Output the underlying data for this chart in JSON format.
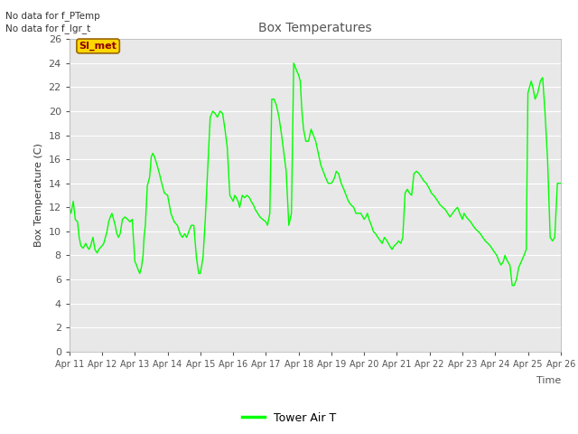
{
  "title": "Box Temperatures",
  "xlabel": "Time",
  "ylabel": "Box Temperature (C)",
  "ylim": [
    0,
    26
  ],
  "yticks": [
    0,
    2,
    4,
    6,
    8,
    10,
    12,
    14,
    16,
    18,
    20,
    22,
    24,
    26
  ],
  "xtick_labels": [
    "Apr 11",
    "Apr 12",
    "Apr 13",
    "Apr 14",
    "Apr 15",
    "Apr 16",
    "Apr 17",
    "Apr 18",
    "Apr 19",
    "Apr 20",
    "Apr 21",
    "Apr 22",
    "Apr 23",
    "Apr 24",
    "Apr 25",
    "Apr 26"
  ],
  "line_color": "#00FF00",
  "line_label": "Tower Air T",
  "annotation1": "No data for f_PTemp",
  "annotation2": "No data for f_lgr_t",
  "si_met_label": "SI_met",
  "background_color": "#FFFFFF",
  "plot_bg_color": "#E8E8E8",
  "grid_color": "#FFFFFF",
  "key_x": [
    0.0,
    0.05,
    0.12,
    0.18,
    0.25,
    0.3,
    0.35,
    0.42,
    0.5,
    0.55,
    0.6,
    0.65,
    0.72,
    0.78,
    0.85,
    0.9,
    1.0,
    1.05,
    1.1,
    1.15,
    1.2,
    1.25,
    1.3,
    1.35,
    1.4,
    1.45,
    1.5,
    1.55,
    1.62,
    1.7,
    1.78,
    1.85,
    1.92,
    2.0,
    2.05,
    2.1,
    2.15,
    2.2,
    2.25,
    2.28,
    2.32,
    2.38,
    2.45,
    2.5,
    2.55,
    2.6,
    2.68,
    2.75,
    2.82,
    2.9,
    3.0,
    3.1,
    3.2,
    3.3,
    3.38,
    3.45,
    3.52,
    3.58,
    3.65,
    3.72,
    3.8,
    3.88,
    3.95,
    4.0,
    4.08,
    4.15,
    4.22,
    4.3,
    4.38,
    4.45,
    4.52,
    4.6,
    4.68,
    4.75,
    4.82,
    4.9,
    5.0,
    5.05,
    5.1,
    5.15,
    5.2,
    5.28,
    5.35,
    5.42,
    5.5,
    5.55,
    5.62,
    5.68,
    5.75,
    5.82,
    5.9,
    6.0,
    6.05,
    6.12,
    6.18,
    6.25,
    6.32,
    6.4,
    6.48,
    6.55,
    6.62,
    6.7,
    6.78,
    6.85,
    6.92,
    7.0,
    7.05,
    7.1,
    7.15,
    7.22,
    7.3,
    7.38,
    7.45,
    7.52,
    7.6,
    7.68,
    7.75,
    7.82,
    7.9,
    8.0,
    8.05,
    8.1,
    8.15,
    8.22,
    8.3,
    8.38,
    8.45,
    8.52,
    8.6,
    8.68,
    8.75,
    8.82,
    8.9,
    9.0,
    9.05,
    9.1,
    9.15,
    9.22,
    9.28,
    9.35,
    9.42,
    9.5,
    9.55,
    9.62,
    9.7,
    9.78,
    9.85,
    9.92,
    10.0,
    10.05,
    10.12,
    10.18,
    10.25,
    10.32,
    10.38,
    10.45,
    10.52,
    10.6,
    10.68,
    10.75,
    10.82,
    10.9,
    11.0,
    11.05,
    11.12,
    11.18,
    11.25,
    11.32,
    11.4,
    11.48,
    11.55,
    11.62,
    11.7,
    11.78,
    11.85,
    11.92,
    12.0,
    12.05,
    12.12,
    12.18,
    12.25,
    12.32,
    12.4,
    12.48,
    12.55,
    12.62,
    12.7,
    12.78,
    12.85,
    12.92,
    13.0,
    13.05,
    13.12,
    13.18,
    13.25,
    13.3,
    13.38,
    13.45,
    13.52,
    13.58,
    13.65,
    13.72,
    13.8,
    13.88,
    13.95,
    14.0,
    14.05,
    14.1,
    14.15,
    14.22,
    14.3,
    14.38,
    14.45,
    14.52,
    14.6,
    14.68,
    14.75,
    14.82,
    14.9,
    15.0
  ],
  "key_y": [
    12.0,
    11.5,
    12.5,
    11.0,
    10.8,
    9.5,
    8.8,
    8.6,
    9.0,
    8.7,
    8.5,
    8.8,
    9.5,
    8.5,
    8.2,
    8.5,
    8.8,
    9.0,
    9.5,
    10.0,
    10.8,
    11.2,
    11.5,
    11.0,
    10.5,
    9.8,
    9.5,
    9.8,
    11.0,
    11.2,
    11.0,
    10.8,
    11.0,
    7.5,
    7.2,
    6.8,
    6.5,
    7.0,
    8.0,
    9.5,
    10.5,
    13.8,
    14.5,
    16.2,
    16.5,
    16.2,
    15.5,
    14.8,
    14.0,
    13.2,
    13.0,
    11.5,
    10.8,
    10.5,
    9.8,
    9.5,
    9.8,
    9.5,
    10.0,
    10.5,
    10.5,
    7.8,
    6.5,
    6.5,
    7.8,
    11.0,
    15.0,
    19.5,
    20.0,
    19.8,
    19.5,
    20.0,
    19.8,
    18.5,
    17.0,
    13.0,
    12.5,
    13.0,
    12.8,
    12.5,
    12.0,
    13.0,
    12.8,
    13.0,
    12.8,
    12.5,
    12.2,
    11.8,
    11.5,
    11.2,
    11.0,
    10.8,
    10.5,
    11.5,
    21.0,
    21.0,
    20.5,
    19.5,
    18.0,
    16.5,
    15.0,
    10.5,
    11.5,
    24.0,
    23.5,
    23.0,
    22.5,
    20.0,
    18.5,
    17.5,
    17.5,
    18.5,
    18.0,
    17.5,
    16.5,
    15.5,
    15.0,
    14.5,
    14.0,
    14.0,
    14.2,
    14.5,
    15.0,
    14.8,
    14.0,
    13.5,
    13.0,
    12.5,
    12.2,
    12.0,
    11.5,
    11.5,
    11.5,
    11.0,
    11.2,
    11.5,
    11.0,
    10.5,
    10.0,
    9.8,
    9.5,
    9.2,
    9.0,
    9.5,
    9.2,
    8.8,
    8.5,
    8.8,
    9.0,
    9.2,
    9.0,
    9.5,
    13.2,
    13.5,
    13.2,
    13.0,
    14.8,
    15.0,
    14.8,
    14.5,
    14.2,
    14.0,
    13.5,
    13.2,
    13.0,
    12.8,
    12.5,
    12.2,
    12.0,
    11.8,
    11.5,
    11.2,
    11.5,
    11.8,
    12.0,
    11.5,
    11.0,
    11.5,
    11.2,
    11.0,
    10.8,
    10.5,
    10.2,
    10.0,
    9.8,
    9.5,
    9.2,
    9.0,
    8.8,
    8.5,
    8.2,
    8.0,
    7.5,
    7.2,
    7.5,
    8.0,
    7.5,
    7.2,
    5.5,
    5.5,
    6.0,
    7.0,
    7.5,
    8.0,
    8.5,
    21.5,
    22.0,
    22.5,
    22.0,
    21.0,
    21.5,
    22.5,
    22.8,
    20.0,
    16.0,
    9.5,
    9.2,
    9.5,
    14.0,
    14.0
  ]
}
